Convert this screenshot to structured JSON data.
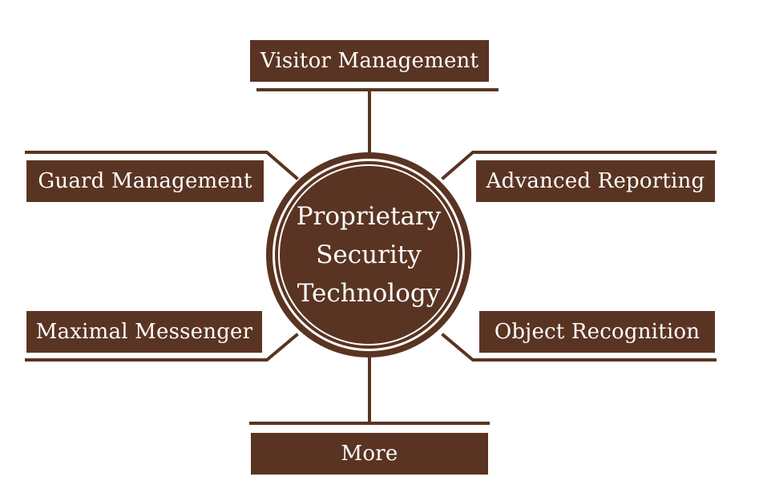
{
  "diagram": {
    "center": {
      "line1": "Proprietary",
      "line2": "Security",
      "line3": "Technology"
    },
    "nodes": {
      "top": "Visitor Management",
      "upper_left": "Guard Management",
      "upper_right": "Advanced Reporting",
      "lower_left": "Maximal Messenger",
      "lower_right": "Object Recognition",
      "bottom": "More"
    },
    "colors": {
      "box_fill": "#5a3422",
      "text": "#ffffff",
      "line": "#5a3422"
    }
  }
}
